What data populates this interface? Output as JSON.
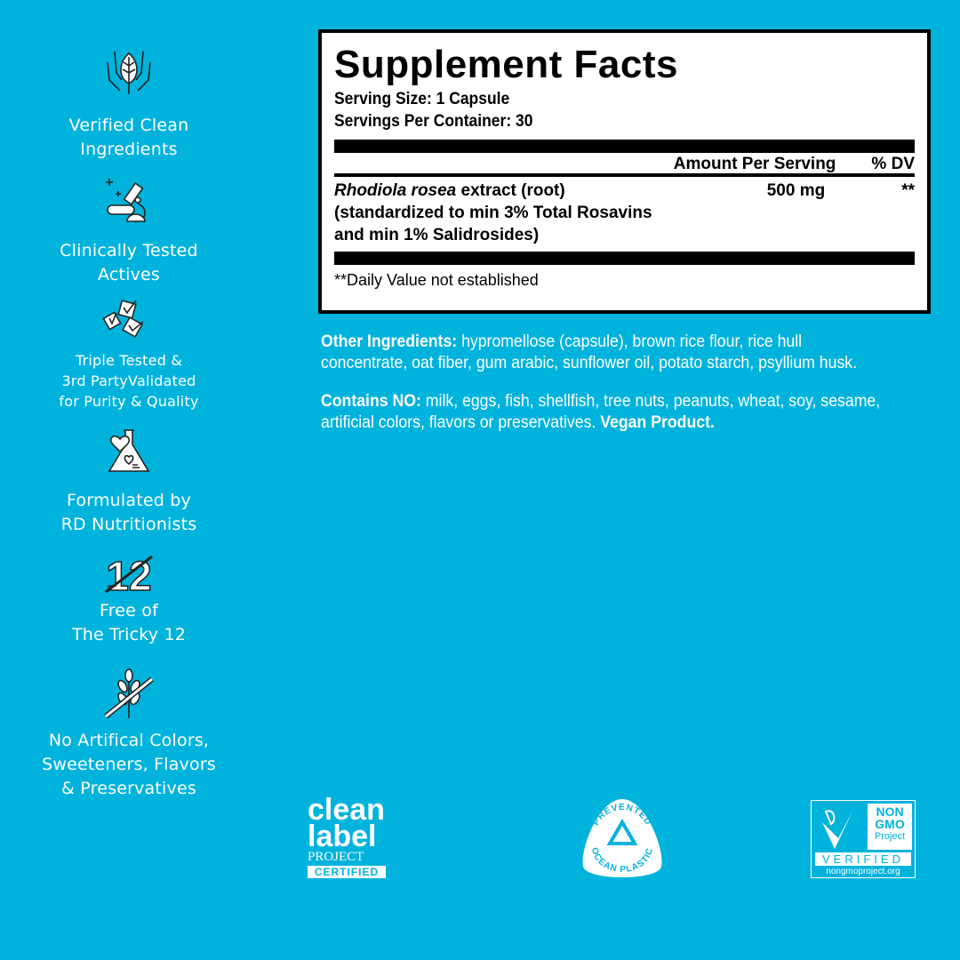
{
  "features": [
    {
      "icon": "hands-leaf-icon",
      "text": [
        "Verified Clean",
        "Ingredients"
      ]
    },
    {
      "icon": "microscope-icon",
      "text": [
        "Clinically Tested",
        "Actives"
      ]
    },
    {
      "icon": "checkmarks-icon",
      "text": [
        "Triple Tested &",
        "3rd PartyValidated",
        "for Purity & Quality"
      ]
    },
    {
      "icon": "heart-flask-icon",
      "text": [
        "Formulated by",
        "RD Nutritionists"
      ]
    },
    {
      "icon": "crossed-12-icon",
      "icon_text": "12",
      "text": [
        "Free of",
        "The Tricky 12"
      ]
    },
    {
      "icon": "crossed-wheat-icon",
      "text": [
        "No Artifical Colors,",
        "Sweeteners, Flavors",
        "& Preservatives"
      ]
    }
  ],
  "facts": {
    "title": "Supplement Facts",
    "serving_size": "Serving Size: 1 Capsule",
    "servings": "Servings Per Container: 30",
    "col_amount": "Amount Per Serving",
    "col_dv": "% DV",
    "ingredient_italic": "Rhodiola rosea",
    "ingredient_rest": " extract (root)",
    "ingredient_line2": "(standardized to min 3% Total Rosavins",
    "ingredient_line3": "and min 1% Salidrosides)",
    "amount": "500 mg",
    "dv": "**",
    "footnote": "**Daily Value not established"
  },
  "other": {
    "label": "Other Ingredients:",
    "text": " hypromellose (capsule), brown rice flour, rice hull concentrate, oat fiber, gum arabic, sunflower oil, potato starch, psyllium husk."
  },
  "contains": {
    "label": "Contains NO:",
    "text": " milk, eggs, fish, shellfish, tree nuts, peanuts, wheat, soy, sesame, artificial colors, flavors or preservatives. ",
    "bold": "Vegan Product."
  },
  "logos": {
    "clean_label": [
      "clean",
      "label",
      "PROJECT",
      "CERTIFIED"
    ],
    "ocean": [
      "PREVENTED",
      "OCEAN PLASTIC"
    ],
    "nongmo": [
      "NON",
      "GMO",
      "Project",
      "VERIFIED",
      "nongmoproject.org"
    ]
  },
  "colors": {
    "background": "#00b3dc"
  }
}
